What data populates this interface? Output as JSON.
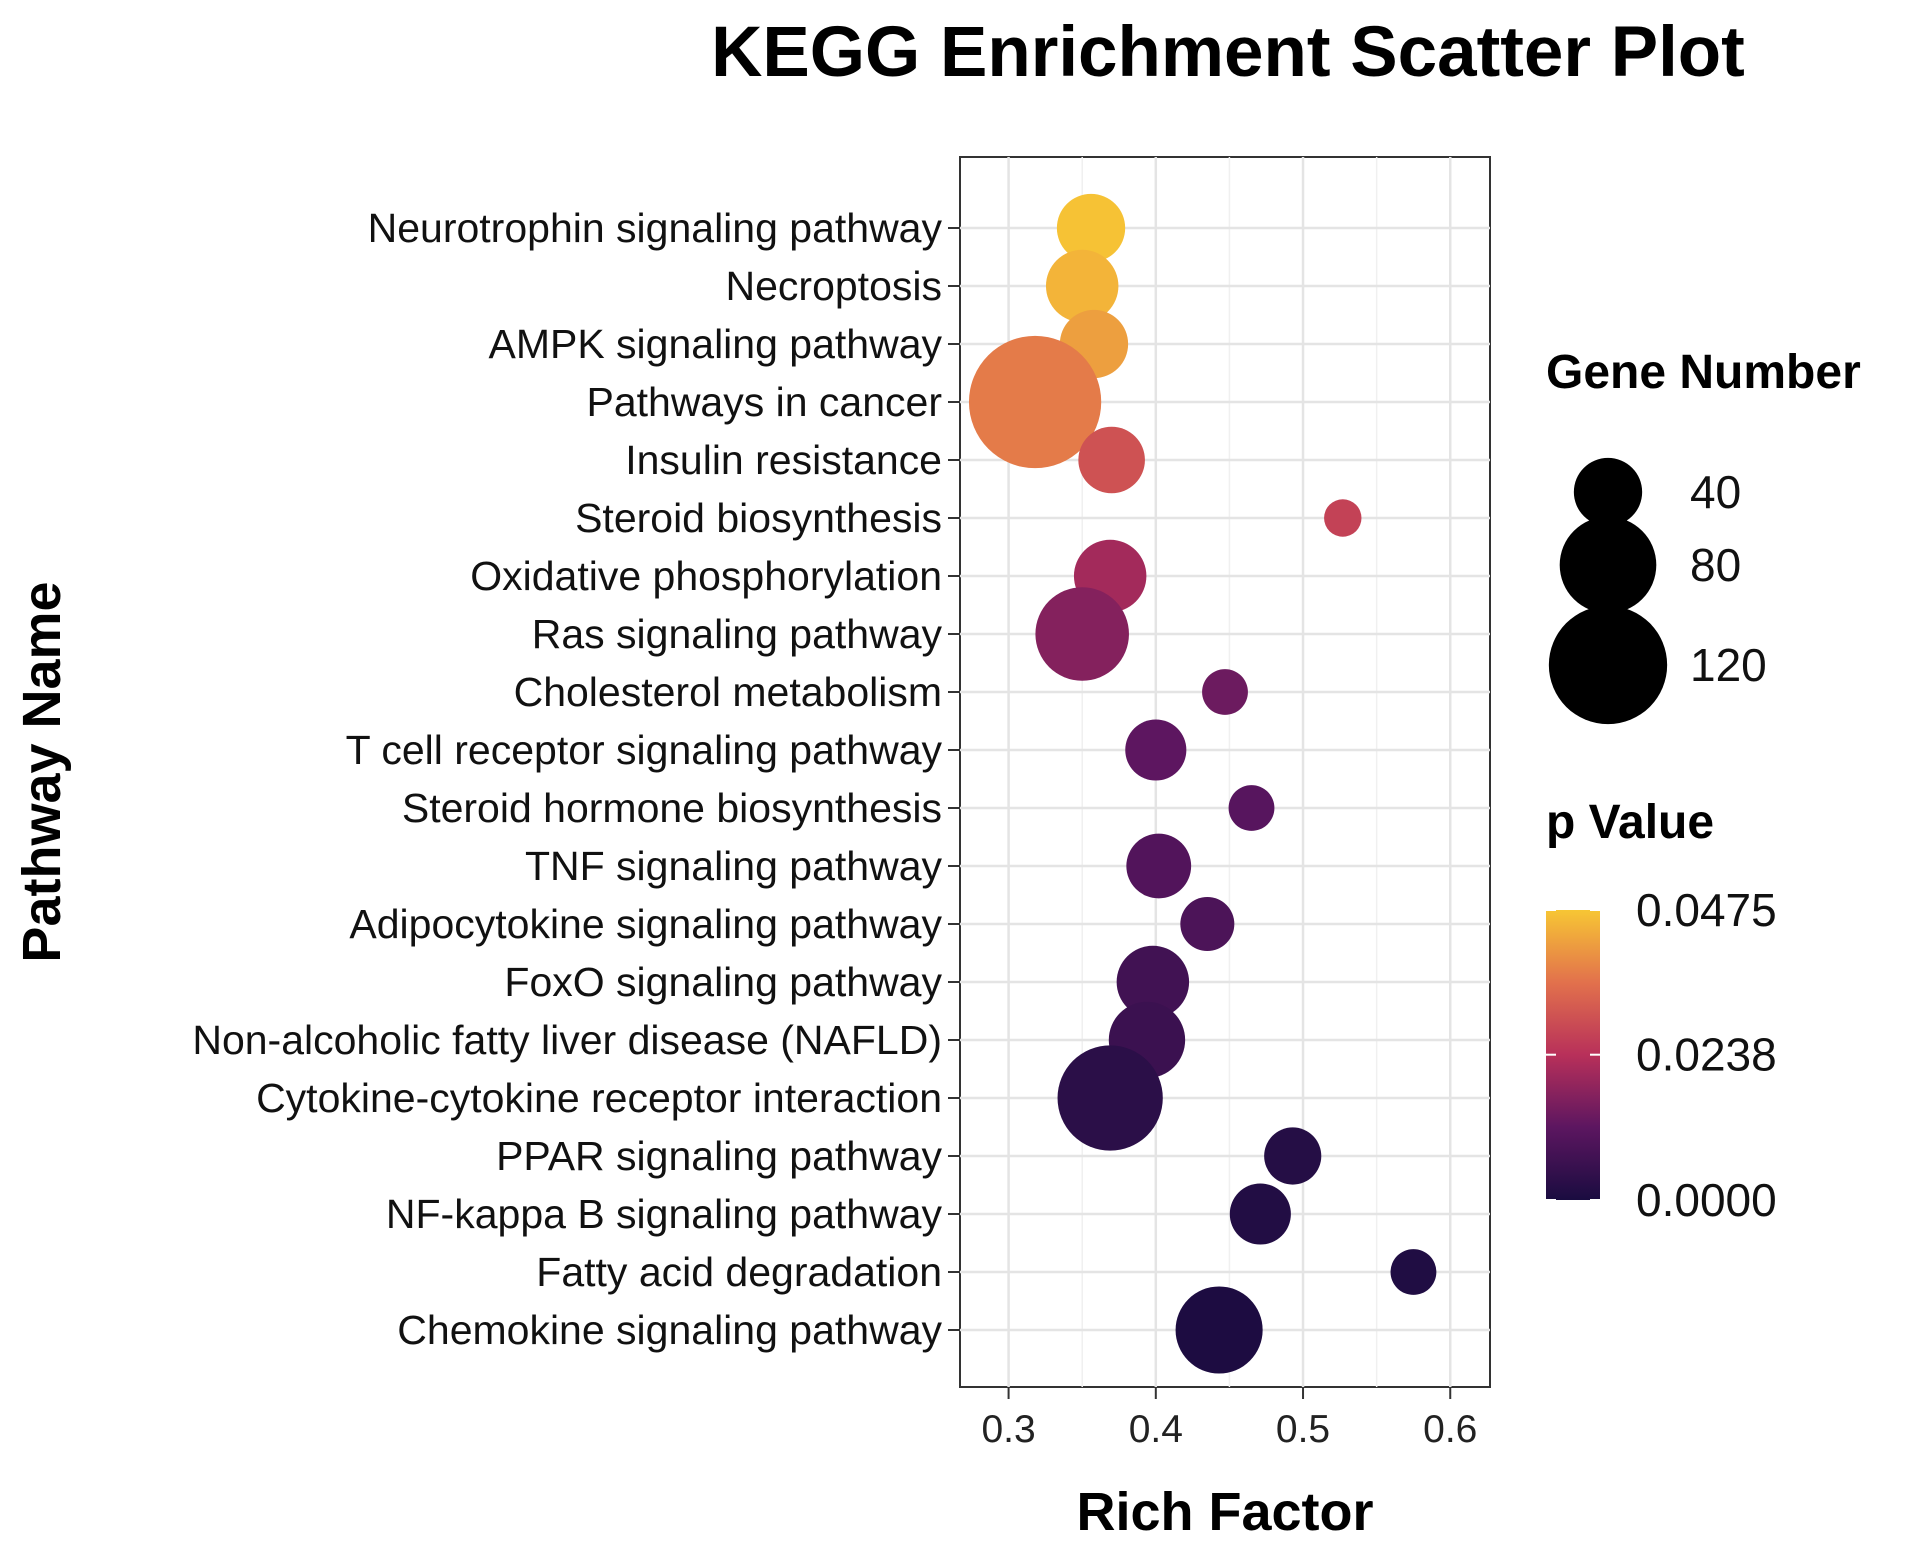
{
  "chart_data": {
    "type": "scatter",
    "title": "KEGG Enrichment Scatter Plot",
    "xlabel": "Rich Factor",
    "ylabel": "Pathway Name",
    "xlim": [
      0.267,
      0.627
    ],
    "xticks": [
      {
        "value": 0.3,
        "label": "0.3"
      },
      {
        "value": 0.4,
        "label": "0.4"
      },
      {
        "value": 0.5,
        "label": "0.5"
      },
      {
        "value": 0.6,
        "label": "0.6"
      }
    ],
    "grid": true,
    "points": [
      {
        "pathway": "Neurotrophin signaling pathway",
        "rich_factor": 0.356,
        "gene_number": 40,
        "p_value": 0.047
      },
      {
        "pathway": "Necroptosis",
        "rich_factor": 0.35,
        "gene_number": 45,
        "p_value": 0.045
      },
      {
        "pathway": "AMPK signaling pathway",
        "rich_factor": 0.358,
        "gene_number": 40,
        "p_value": 0.042
      },
      {
        "pathway": "Pathways in cancer",
        "rich_factor": 0.318,
        "gene_number": 150,
        "p_value": 0.037
      },
      {
        "pathway": "Insulin resistance",
        "rich_factor": 0.37,
        "gene_number": 38,
        "p_value": 0.03
      },
      {
        "pathway": "Steroid biosynthesis",
        "rich_factor": 0.527,
        "gene_number": 12,
        "p_value": 0.027
      },
      {
        "pathway": "Oxidative phosphorylation",
        "rich_factor": 0.369,
        "gene_number": 45,
        "p_value": 0.021
      },
      {
        "pathway": "Ras signaling pathway",
        "rich_factor": 0.35,
        "gene_number": 75,
        "p_value": 0.017
      },
      {
        "pathway": "Cholesterol metabolism",
        "rich_factor": 0.447,
        "gene_number": 18,
        "p_value": 0.014
      },
      {
        "pathway": "T cell receptor signaling pathway",
        "rich_factor": 0.4,
        "gene_number": 32,
        "p_value": 0.012
      },
      {
        "pathway": "Steroid hormone biosynthesis",
        "rich_factor": 0.465,
        "gene_number": 18,
        "p_value": 0.011
      },
      {
        "pathway": "TNF signaling pathway",
        "rich_factor": 0.402,
        "gene_number": 36,
        "p_value": 0.01
      },
      {
        "pathway": "Adipocytokine signaling pathway",
        "rich_factor": 0.435,
        "gene_number": 25,
        "p_value": 0.009
      },
      {
        "pathway": "FoxO signaling pathway",
        "rich_factor": 0.398,
        "gene_number": 45,
        "p_value": 0.007
      },
      {
        "pathway": "Non-alcoholic fatty liver disease (NAFLD)",
        "rich_factor": 0.394,
        "gene_number": 50,
        "p_value": 0.006
      },
      {
        "pathway": "Cytokine-cytokine receptor interaction",
        "rich_factor": 0.369,
        "gene_number": 95,
        "p_value": 0.003
      },
      {
        "pathway": "PPAR signaling pathway",
        "rich_factor": 0.493,
        "gene_number": 28,
        "p_value": 0.002
      },
      {
        "pathway": "NF-kappa B signaling pathway",
        "rich_factor": 0.471,
        "gene_number": 32,
        "p_value": 0.0015
      },
      {
        "pathway": "Fatty acid degradation",
        "rich_factor": 0.575,
        "gene_number": 18,
        "p_value": 0.001
      },
      {
        "pathway": "Chemokine signaling pathway",
        "rich_factor": 0.443,
        "gene_number": 65,
        "p_value": 0.0005
      }
    ],
    "size_legend": {
      "title": "Gene Number",
      "entries": [
        {
          "value": 40,
          "label": "40"
        },
        {
          "value": 80,
          "label": "80"
        },
        {
          "value": 120,
          "label": "120"
        }
      ]
    },
    "color_legend": {
      "title": "p Value",
      "min": 0.0,
      "max": 0.0475,
      "ticks": [
        {
          "value": 0.0475,
          "label": "0.0475"
        },
        {
          "value": 0.0238,
          "label": "0.0238"
        },
        {
          "value": 0.0,
          "label": "0.0000"
        }
      ],
      "colors": [
        "#1a0c40",
        "#5c1660",
        "#b8305a",
        "#e2714c",
        "#f7c634"
      ]
    }
  }
}
